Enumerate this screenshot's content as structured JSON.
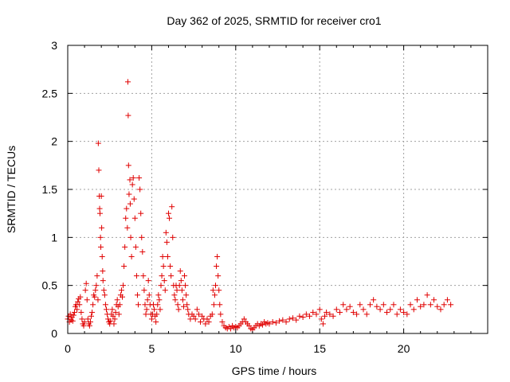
{
  "chart_data": {
    "type": "scatter",
    "title": "Day 362 of 2025, SRMTID for receiver cro1",
    "xlabel": "GPS time / hours",
    "ylabel": "SRMTID / TECUs",
    "xlim": [
      0,
      25
    ],
    "ylim": [
      0,
      3
    ],
    "xticks": [
      0,
      5,
      10,
      15,
      20
    ],
    "yticks": [
      0,
      0.5,
      1,
      1.5,
      2,
      2.5,
      3
    ],
    "xtick_labels": [
      "0",
      "5",
      "10",
      "15",
      "20"
    ],
    "ytick_labels": [
      "0",
      "0.5",
      "1",
      "1.5",
      "2",
      "2.5",
      "3"
    ],
    "grid": true,
    "marker": "+",
    "series": [
      {
        "name": "SRMTID",
        "color": "#e00000",
        "points": [
          [
            0.0,
            0.15
          ],
          [
            0.05,
            0.18
          ],
          [
            0.1,
            0.12
          ],
          [
            0.15,
            0.2
          ],
          [
            0.2,
            0.14
          ],
          [
            0.25,
            0.17
          ],
          [
            0.3,
            0.13
          ],
          [
            0.35,
            0.19
          ],
          [
            0.4,
            0.22
          ],
          [
            0.45,
            0.28
          ],
          [
            0.5,
            0.3
          ],
          [
            0.55,
            0.25
          ],
          [
            0.6,
            0.33
          ],
          [
            0.65,
            0.36
          ],
          [
            0.7,
            0.3
          ],
          [
            0.75,
            0.38
          ],
          [
            0.8,
            0.22
          ],
          [
            0.85,
            0.15
          ],
          [
            0.9,
            0.1
          ],
          [
            0.95,
            0.08
          ],
          [
            1.0,
            0.12
          ],
          [
            1.05,
            0.45
          ],
          [
            1.1,
            0.52
          ],
          [
            1.15,
            0.35
          ],
          [
            1.2,
            0.15
          ],
          [
            1.25,
            0.1
          ],
          [
            1.3,
            0.08
          ],
          [
            1.35,
            0.12
          ],
          [
            1.4,
            0.18
          ],
          [
            1.45,
            0.22
          ],
          [
            1.5,
            0.3
          ],
          [
            1.55,
            0.4
          ],
          [
            1.6,
            0.38
          ],
          [
            1.65,
            0.45
          ],
          [
            1.7,
            0.5
          ],
          [
            1.75,
            0.6
          ],
          [
            1.8,
            0.35
          ],
          [
            1.82,
            1.98
          ],
          [
            1.85,
            1.7
          ],
          [
            1.88,
            1.43
          ],
          [
            1.9,
            1.3
          ],
          [
            1.92,
            1.25
          ],
          [
            1.95,
            1.0
          ],
          [
            1.97,
            0.9
          ],
          [
            2.0,
            1.43
          ],
          [
            2.02,
            1.1
          ],
          [
            2.05,
            0.8
          ],
          [
            2.08,
            0.65
          ],
          [
            2.1,
            0.55
          ],
          [
            2.15,
            0.45
          ],
          [
            2.2,
            0.4
          ],
          [
            2.25,
            0.3
          ],
          [
            2.3,
            0.25
          ],
          [
            2.35,
            0.2
          ],
          [
            2.4,
            0.15
          ],
          [
            2.45,
            0.12
          ],
          [
            2.5,
            0.1
          ],
          [
            2.55,
            0.13
          ],
          [
            2.6,
            0.2
          ],
          [
            2.65,
            0.25
          ],
          [
            2.7,
            0.18
          ],
          [
            2.75,
            0.1
          ],
          [
            2.8,
            0.15
          ],
          [
            2.85,
            0.22
          ],
          [
            2.9,
            0.3
          ],
          [
            2.95,
            0.35
          ],
          [
            3.0,
            0.28
          ],
          [
            3.05,
            0.2
          ],
          [
            3.1,
            0.3
          ],
          [
            3.15,
            0.4
          ],
          [
            3.2,
            0.45
          ],
          [
            3.25,
            0.38
          ],
          [
            3.3,
            0.5
          ],
          [
            3.35,
            0.7
          ],
          [
            3.4,
            0.9
          ],
          [
            3.45,
            1.2
          ],
          [
            3.5,
            1.3
          ],
          [
            3.55,
            1.1
          ],
          [
            3.58,
            2.62
          ],
          [
            3.6,
            2.27
          ],
          [
            3.62,
            1.75
          ],
          [
            3.65,
            1.45
          ],
          [
            3.7,
            1.6
          ],
          [
            3.72,
            1.35
          ],
          [
            3.75,
            1.0
          ],
          [
            3.8,
            0.8
          ],
          [
            3.85,
            1.55
          ],
          [
            3.9,
            1.62
          ],
          [
            3.95,
            1.4
          ],
          [
            4.0,
            1.2
          ],
          [
            4.05,
            0.9
          ],
          [
            4.1,
            0.6
          ],
          [
            4.15,
            0.4
          ],
          [
            4.2,
            0.3
          ],
          [
            4.25,
            1.62
          ],
          [
            4.3,
            1.5
          ],
          [
            4.35,
            1.25
          ],
          [
            4.4,
            1.0
          ],
          [
            4.45,
            0.85
          ],
          [
            4.5,
            0.6
          ],
          [
            4.55,
            0.45
          ],
          [
            4.6,
            0.3
          ],
          [
            4.65,
            0.2
          ],
          [
            4.7,
            0.25
          ],
          [
            4.75,
            0.35
          ],
          [
            4.8,
            0.55
          ],
          [
            4.85,
            0.4
          ],
          [
            4.9,
            0.3
          ],
          [
            4.95,
            0.2
          ],
          [
            5.0,
            0.15
          ],
          [
            5.05,
            0.2
          ],
          [
            5.1,
            0.3
          ],
          [
            5.15,
            0.25
          ],
          [
            5.2,
            0.18
          ],
          [
            5.25,
            0.12
          ],
          [
            5.3,
            0.2
          ],
          [
            5.35,
            0.3
          ],
          [
            5.4,
            0.4
          ],
          [
            5.45,
            0.35
          ],
          [
            5.5,
            0.25
          ],
          [
            5.55,
            0.5
          ],
          [
            5.6,
            0.6
          ],
          [
            5.65,
            0.8
          ],
          [
            5.7,
            0.7
          ],
          [
            5.75,
            0.55
          ],
          [
            5.8,
            0.45
          ],
          [
            5.85,
            1.05
          ],
          [
            5.9,
            0.95
          ],
          [
            5.95,
            0.8
          ],
          [
            6.0,
            1.25
          ],
          [
            6.05,
            1.2
          ],
          [
            6.1,
            0.7
          ],
          [
            6.15,
            0.6
          ],
          [
            6.2,
            1.32
          ],
          [
            6.25,
            1.0
          ],
          [
            6.3,
            0.5
          ],
          [
            6.35,
            0.4
          ],
          [
            6.4,
            0.35
          ],
          [
            6.45,
            0.5
          ],
          [
            6.5,
            0.45
          ],
          [
            6.55,
            0.3
          ],
          [
            6.6,
            0.25
          ],
          [
            6.65,
            0.5
          ],
          [
            6.7,
            0.65
          ],
          [
            6.75,
            0.55
          ],
          [
            6.8,
            0.45
          ],
          [
            6.85,
            0.35
          ],
          [
            6.9,
            0.28
          ],
          [
            6.95,
            0.6
          ],
          [
            7.0,
            0.5
          ],
          [
            7.05,
            0.4
          ],
          [
            7.1,
            0.3
          ],
          [
            7.15,
            0.25
          ],
          [
            7.2,
            0.2
          ],
          [
            7.3,
            0.15
          ],
          [
            7.4,
            0.2
          ],
          [
            7.5,
            0.18
          ],
          [
            7.6,
            0.15
          ],
          [
            7.7,
            0.25
          ],
          [
            7.8,
            0.2
          ],
          [
            7.9,
            0.12
          ],
          [
            8.0,
            0.18
          ],
          [
            8.1,
            0.15
          ],
          [
            8.2,
            0.1
          ],
          [
            8.3,
            0.15
          ],
          [
            8.4,
            0.12
          ],
          [
            8.5,
            0.18
          ],
          [
            8.6,
            0.2
          ],
          [
            8.65,
            0.45
          ],
          [
            8.7,
            0.3
          ],
          [
            8.75,
            0.4
          ],
          [
            8.8,
            0.5
          ],
          [
            8.85,
            0.7
          ],
          [
            8.9,
            0.8
          ],
          [
            8.95,
            0.6
          ],
          [
            9.0,
            0.45
          ],
          [
            9.05,
            0.3
          ],
          [
            9.1,
            0.2
          ],
          [
            9.2,
            0.12
          ],
          [
            9.3,
            0.08
          ],
          [
            9.4,
            0.06
          ],
          [
            9.5,
            0.05
          ],
          [
            9.6,
            0.07
          ],
          [
            9.7,
            0.05
          ],
          [
            9.8,
            0.08
          ],
          [
            9.9,
            0.06
          ],
          [
            10.0,
            0.07
          ],
          [
            10.1,
            0.06
          ],
          [
            10.2,
            0.08
          ],
          [
            10.3,
            0.1
          ],
          [
            10.4,
            0.12
          ],
          [
            10.5,
            0.15
          ],
          [
            10.6,
            0.12
          ],
          [
            10.7,
            0.1
          ],
          [
            10.8,
            0.08
          ],
          [
            10.9,
            0.05
          ],
          [
            11.0,
            0.04
          ],
          [
            11.1,
            0.06
          ],
          [
            11.2,
            0.08
          ],
          [
            11.3,
            0.1
          ],
          [
            11.4,
            0.08
          ],
          [
            11.5,
            0.1
          ],
          [
            11.6,
            0.09
          ],
          [
            11.7,
            0.12
          ],
          [
            11.8,
            0.1
          ],
          [
            11.9,
            0.11
          ],
          [
            12.0,
            0.1
          ],
          [
            12.2,
            0.12
          ],
          [
            12.4,
            0.11
          ],
          [
            12.6,
            0.13
          ],
          [
            12.8,
            0.14
          ],
          [
            13.0,
            0.12
          ],
          [
            13.2,
            0.15
          ],
          [
            13.4,
            0.16
          ],
          [
            13.6,
            0.14
          ],
          [
            13.8,
            0.18
          ],
          [
            14.0,
            0.17
          ],
          [
            14.2,
            0.2
          ],
          [
            14.4,
            0.18
          ],
          [
            14.6,
            0.22
          ],
          [
            14.8,
            0.2
          ],
          [
            15.0,
            0.25
          ],
          [
            15.1,
            0.15
          ],
          [
            15.2,
            0.1
          ],
          [
            15.3,
            0.18
          ],
          [
            15.4,
            0.22
          ],
          [
            15.6,
            0.2
          ],
          [
            15.8,
            0.18
          ],
          [
            16.0,
            0.25
          ],
          [
            16.2,
            0.22
          ],
          [
            16.4,
            0.3
          ],
          [
            16.6,
            0.25
          ],
          [
            16.8,
            0.28
          ],
          [
            17.0,
            0.22
          ],
          [
            17.2,
            0.2
          ],
          [
            17.4,
            0.3
          ],
          [
            17.6,
            0.25
          ],
          [
            17.8,
            0.2
          ],
          [
            18.0,
            0.3
          ],
          [
            18.2,
            0.35
          ],
          [
            18.4,
            0.28
          ],
          [
            18.6,
            0.25
          ],
          [
            18.8,
            0.3
          ],
          [
            19.0,
            0.22
          ],
          [
            19.2,
            0.25
          ],
          [
            19.4,
            0.3
          ],
          [
            19.6,
            0.2
          ],
          [
            19.8,
            0.25
          ],
          [
            20.0,
            0.22
          ],
          [
            20.2,
            0.2
          ],
          [
            20.4,
            0.3
          ],
          [
            20.6,
            0.25
          ],
          [
            20.8,
            0.35
          ],
          [
            21.0,
            0.28
          ],
          [
            21.2,
            0.3
          ],
          [
            21.4,
            0.4
          ],
          [
            21.6,
            0.3
          ],
          [
            21.8,
            0.35
          ],
          [
            22.0,
            0.28
          ],
          [
            22.2,
            0.25
          ],
          [
            22.4,
            0.3
          ],
          [
            22.6,
            0.35
          ],
          [
            22.8,
            0.3
          ]
        ]
      }
    ]
  }
}
